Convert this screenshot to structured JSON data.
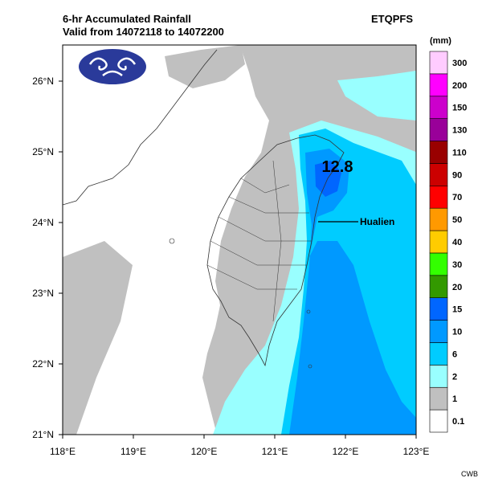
{
  "title_line1": "6-hr Accumulated Rainfall",
  "title_line2": "Valid from 14072118 to 14072200",
  "model_name": "ETQPFS",
  "credit": "CWB",
  "map": {
    "lon_labels": [
      "118°E",
      "119°E",
      "120°E",
      "121°E",
      "122°E",
      "123°E"
    ],
    "lat_labels": [
      "21°N",
      "22°N",
      "23°N",
      "24°N",
      "25°N",
      "26°N"
    ],
    "max_value_label": "12.8",
    "place_label": "Hualien",
    "logo": "cwb-logo-icon"
  },
  "colorbar": {
    "unit": "(mm)",
    "bins": [
      {
        "label": "0.1",
        "color": "#ffffff"
      },
      {
        "label": "1",
        "color": "#c0c0c0"
      },
      {
        "label": "2",
        "color": "#99ffff"
      },
      {
        "label": "6",
        "color": "#00ccff"
      },
      {
        "label": "10",
        "color": "#0099ff"
      },
      {
        "label": "15",
        "color": "#0066ff"
      },
      {
        "label": "20",
        "color": "#339900"
      },
      {
        "label": "30",
        "color": "#33ff00"
      },
      {
        "label": "40",
        "color": "#ffcc00"
      },
      {
        "label": "50",
        "color": "#ff9900"
      },
      {
        "label": "70",
        "color": "#ff0000"
      },
      {
        "label": "90",
        "color": "#cc0000"
      },
      {
        "label": "110",
        "color": "#990000"
      },
      {
        "label": "130",
        "color": "#990099"
      },
      {
        "label": "150",
        "color": "#cc00cc"
      },
      {
        "label": "200",
        "color": "#ff00ff"
      },
      {
        "label": "300",
        "color": "#ffccff"
      }
    ]
  }
}
